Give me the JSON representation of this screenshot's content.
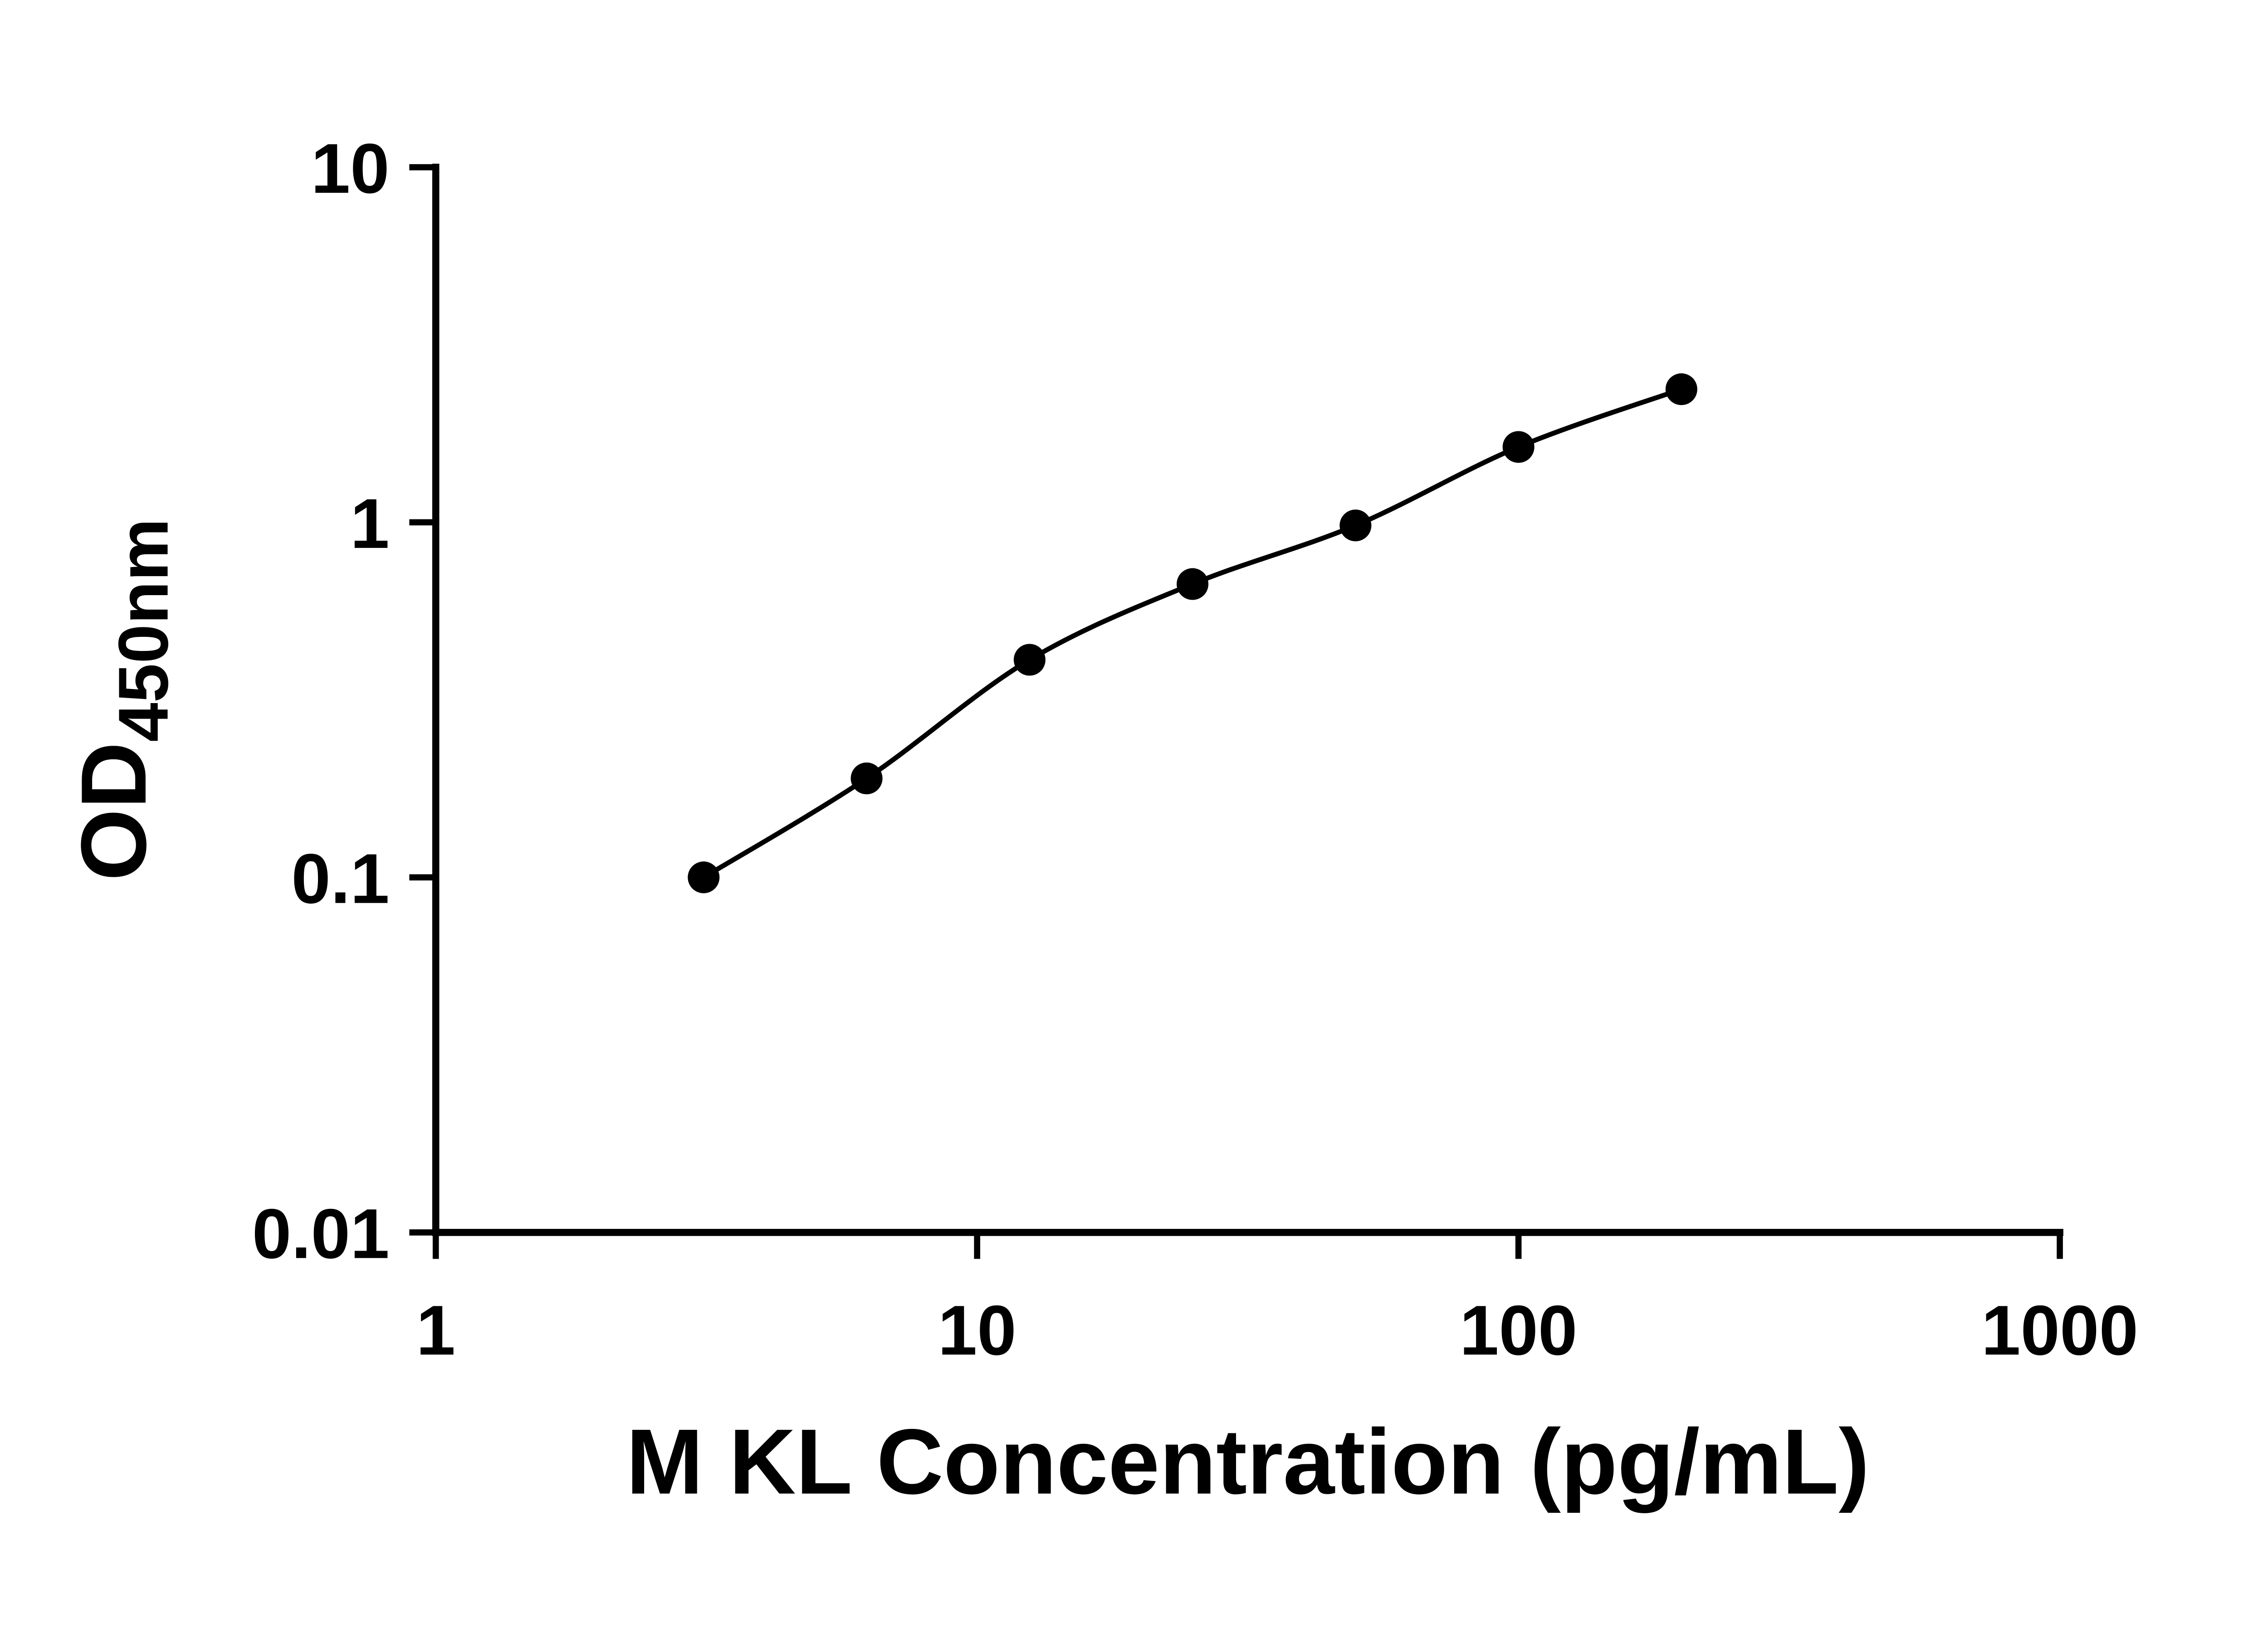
{
  "figure": {
    "kind": "elisa-standard-curve",
    "background_color": "#ffffff",
    "foreground_color": "#000000"
  },
  "chart_data": {
    "type": "scatter",
    "title": "",
    "xlabel": "M KL Concentration (pg/mL)",
    "ylabel": "OD450nm",
    "ylabel_main": "OD",
    "ylabel_sub": "450nm",
    "xscale": "log",
    "yscale": "log",
    "xlim": [
      1,
      1000
    ],
    "ylim": [
      0.01,
      10
    ],
    "xticks": [
      1,
      10,
      100,
      1000
    ],
    "xtick_labels": [
      "1",
      "10",
      "100",
      "1000"
    ],
    "yticks": [
      0.01,
      0.1,
      1,
      10
    ],
    "ytick_labels": [
      "0.01",
      "0.1",
      "1",
      "10"
    ],
    "grid": false,
    "legend": false,
    "marker_color": "#000000",
    "line_color": "#000000",
    "series": [
      {
        "name": "standard-curve",
        "marker": "circle",
        "line": true,
        "x": [
          3.125,
          6.25,
          12.5,
          25,
          50,
          100,
          200
        ],
        "y": [
          0.1,
          0.19,
          0.41,
          0.67,
          0.98,
          1.63,
          2.37
        ]
      }
    ]
  }
}
